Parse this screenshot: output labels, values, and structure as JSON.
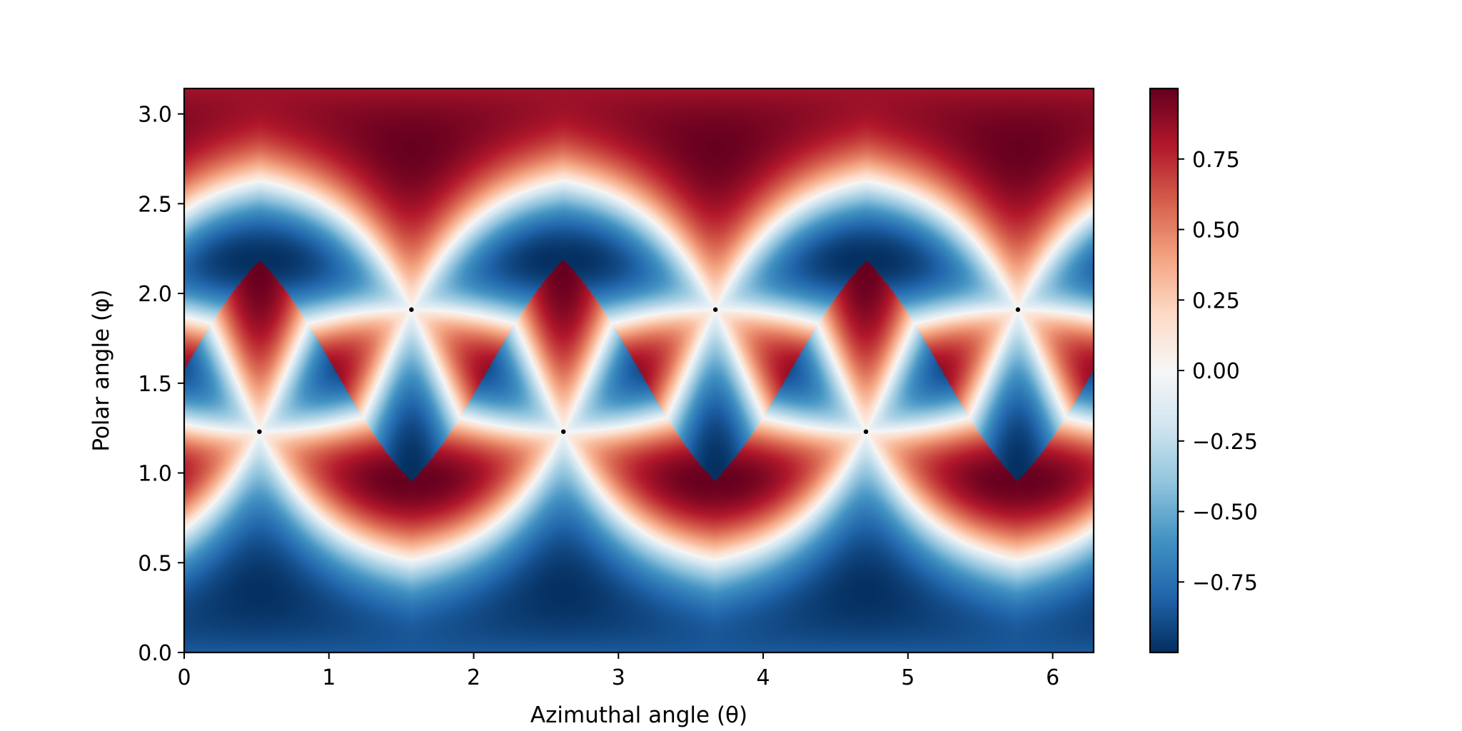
{
  "chart_data": {
    "type": "heatmap",
    "title": "",
    "xlabel": "Azimuthal angle (θ)",
    "ylabel": "Polar angle (φ)",
    "xlim": [
      0,
      6.283
    ],
    "ylim": [
      0,
      3.1416
    ],
    "x_ticks": [
      {
        "value": 0,
        "label": "0"
      },
      {
        "value": 1,
        "label": "1"
      },
      {
        "value": 2,
        "label": "2"
      },
      {
        "value": 3,
        "label": "3"
      },
      {
        "value": 4,
        "label": "4"
      },
      {
        "value": 5,
        "label": "5"
      },
      {
        "value": 6,
        "label": "6"
      }
    ],
    "y_ticks": [
      {
        "value": 0.0,
        "label": "0.0"
      },
      {
        "value": 0.5,
        "label": "0.5"
      },
      {
        "value": 1.0,
        "label": "1.0"
      },
      {
        "value": 1.5,
        "label": "1.5"
      },
      {
        "value": 2.0,
        "label": "2.0"
      },
      {
        "value": 2.5,
        "label": "2.5"
      },
      {
        "value": 3.0,
        "label": "3.0"
      }
    ],
    "colormap": "RdBu_r",
    "colorbar": {
      "vmin": -1.0,
      "vmax": 1.0,
      "ticks": [
        {
          "value": 0.75,
          "label": "0.75"
        },
        {
          "value": 0.5,
          "label": "0.50"
        },
        {
          "value": 0.25,
          "label": "0.25"
        },
        {
          "value": 0.0,
          "label": "0.00"
        },
        {
          "value": -0.25,
          "label": "−0.25"
        },
        {
          "value": -0.5,
          "label": "−0.50"
        },
        {
          "value": -0.75,
          "label": "−0.75"
        }
      ]
    },
    "field": {
      "cell_centers": [
        {
          "theta": 0.52,
          "phi": 1.23
        },
        {
          "theta": 2.62,
          "phi": 1.23
        },
        {
          "theta": 4.71,
          "phi": 1.23
        },
        {
          "theta": 1.57,
          "phi": 1.91
        },
        {
          "theta": 3.67,
          "phi": 1.91
        },
        {
          "theta": 5.76,
          "phi": 1.91
        }
      ],
      "lobe_polar_angle": 0.9
    },
    "grid": false,
    "legend": "none"
  }
}
